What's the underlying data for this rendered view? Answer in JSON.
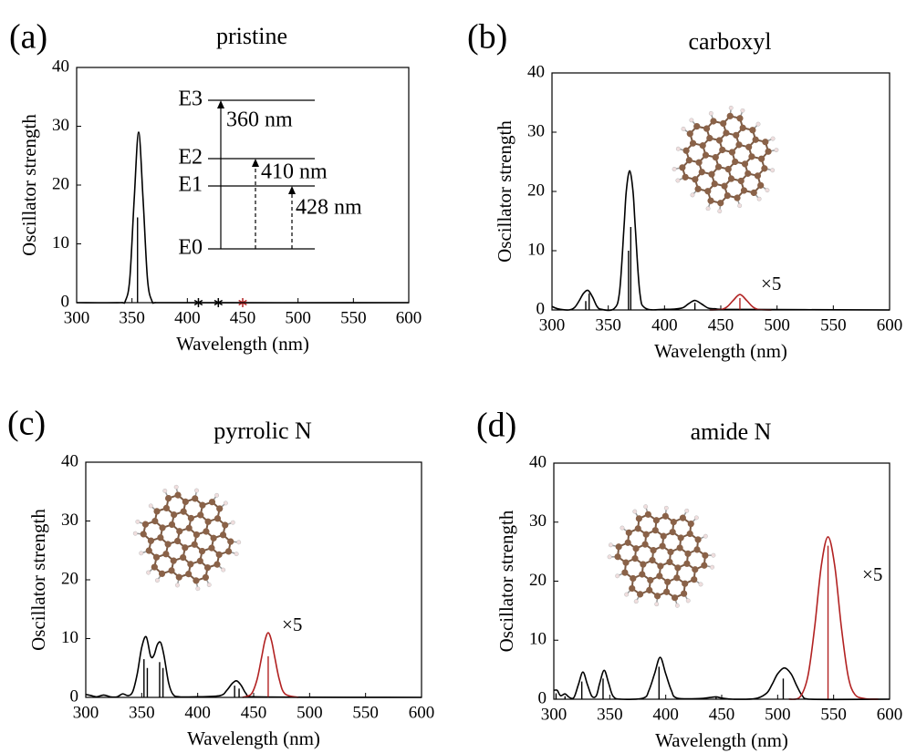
{
  "chart_data": [
    {
      "type": "line",
      "panel": "(a)",
      "title": "pristine",
      "x_label": "Wavelength (nm)",
      "y_label": "Oscillator strength",
      "xlim": [
        300,
        600
      ],
      "ylim": [
        0,
        40
      ],
      "xticks": [
        300,
        350,
        400,
        450,
        500,
        550,
        600
      ],
      "yticks": [
        0,
        10,
        20,
        30,
        40
      ],
      "series": [
        {
          "kind": "curve",
          "color": "#000000",
          "x": [
            300,
            340,
            344,
            348,
            352,
            356,
            360,
            364,
            368,
            372,
            600
          ],
          "values": [
            0,
            0,
            0.3,
            4,
            17.6,
            29,
            17.6,
            4,
            0.3,
            0,
            0
          ]
        },
        {
          "kind": "sticks",
          "color": "#000000",
          "x": [
            355
          ],
          "values": [
            14.5
          ]
        }
      ],
      "markers": {
        "x": [
          410,
          428,
          450
        ],
        "values": [
          0,
          0,
          0
        ],
        "colors": [
          "#000000",
          "#000000",
          "#b22222"
        ]
      },
      "levels": [
        "E3",
        "E2",
        "E1",
        "E0"
      ],
      "transitions": [
        "360 nm",
        "410 nm",
        "428 nm"
      ]
    },
    {
      "type": "line",
      "panel": "(b)",
      "title": "carboxyl",
      "x_label": "Wavelength (nm)",
      "y_label": "Oscillator strength",
      "xlim": [
        300,
        600
      ],
      "ylim": [
        0,
        40
      ],
      "xticks": [
        300,
        350,
        400,
        450,
        500,
        550,
        600
      ],
      "yticks": [
        0,
        10,
        20,
        30,
        40
      ],
      "series": [
        {
          "kind": "curve",
          "color": "#000000",
          "x": [
            300,
            305,
            315,
            320,
            324,
            328,
            332,
            336,
            340,
            344,
            355,
            360,
            364,
            366,
            369,
            372,
            374,
            378,
            383,
            400,
            415,
            421,
            427,
            433,
            439,
            445,
            450,
            600
          ],
          "values": [
            0.6,
            0.2,
            0,
            0.4,
            1.5,
            2.8,
            3.3,
            2.2,
            0.6,
            0.1,
            0.2,
            3,
            14,
            20,
            23.5,
            20,
            14,
            3,
            0.3,
            0.1,
            0.3,
            1,
            1.6,
            1,
            0.3,
            0.2,
            0.1,
            0
          ]
        },
        {
          "kind": "curve",
          "color": "#b22222",
          "x": [
            440,
            451,
            456,
            461,
            467,
            473,
            478,
            483,
            495
          ],
          "values": [
            0,
            0.1,
            0.6,
            1.6,
            2.6,
            1.6,
            0.6,
            0.1,
            0
          ]
        },
        {
          "kind": "sticks",
          "color": "#000000",
          "x": [
            330,
            333,
            368,
            370,
            427
          ],
          "values": [
            1.5,
            2.8,
            10,
            14,
            1.2
          ]
        },
        {
          "kind": "sticks",
          "color": "#b22222",
          "x": [
            467
          ],
          "values": [
            2
          ]
        }
      ],
      "annotations": [
        "×5"
      ]
    },
    {
      "type": "line",
      "panel": "(c)",
      "title": "pyrrolic N",
      "x_label": "Wavelength (nm)",
      "y_label": "Oscillator strength",
      "xlim": [
        300,
        600
      ],
      "ylim": [
        0,
        40
      ],
      "xticks": [
        300,
        350,
        400,
        450,
        500,
        550,
        600
      ],
      "yticks": [
        0,
        10,
        20,
        30,
        40
      ],
      "series": [
        {
          "kind": "curve",
          "color": "#000000",
          "x": [
            300,
            305,
            310,
            316,
            322,
            328,
            333,
            338,
            342,
            346,
            350,
            354,
            358,
            361,
            364,
            367,
            370,
            374,
            378,
            384,
            400,
            420,
            426,
            431,
            435,
            439,
            443,
            448,
            600
          ],
          "values": [
            0.5,
            0.3,
            0.1,
            0.4,
            0.1,
            0.1,
            0.6,
            0.3,
            1,
            4,
            8.5,
            10.3,
            7,
            7.2,
            9,
            9.3,
            7,
            2.5,
            0.5,
            0.1,
            0.1,
            0.3,
            1.2,
            2.4,
            2.8,
            2,
            0.7,
            0.1,
            0
          ]
        },
        {
          "kind": "curve",
          "color": "#b22222",
          "x": [
            440,
            448,
            453,
            457,
            460,
            463,
            466,
            469,
            473,
            478,
            490
          ],
          "values": [
            0,
            0.6,
            3,
            6.7,
            9.6,
            11,
            9.6,
            6.7,
            3,
            0.6,
            0
          ]
        },
        {
          "kind": "sticks",
          "color": "#000000",
          "x": [
            352,
            355,
            366,
            369,
            433,
            437
          ],
          "values": [
            6.5,
            5,
            6,
            5,
            2,
            1.5
          ]
        },
        {
          "kind": "sticks",
          "color": "#b22222",
          "x": [
            463
          ],
          "values": [
            7
          ]
        }
      ],
      "annotations": [
        "×5"
      ]
    },
    {
      "type": "line",
      "panel": "(d)",
      "title": "amide N",
      "x_label": "Wavelength (nm)",
      "y_label": "Oscillator strength",
      "xlim": [
        300,
        600
      ],
      "ylim": [
        0,
        40
      ],
      "xticks": [
        300,
        350,
        400,
        450,
        500,
        550,
        600
      ],
      "yticks": [
        0,
        10,
        20,
        30,
        40
      ],
      "series": [
        {
          "kind": "curve",
          "color": "#000000",
          "x": [
            300,
            303,
            306,
            310,
            314,
            318,
            322,
            326,
            330,
            334,
            338,
            341,
            345,
            349,
            353,
            360,
            380,
            385,
            390,
            395,
            400,
            405,
            410,
            430,
            440,
            445,
            450,
            460,
            480,
            490,
            495,
            500,
            506,
            512,
            517,
            522,
            528,
            600
          ],
          "values": [
            1.5,
            1.5,
            0.6,
            0.9,
            0.3,
            0.3,
            2.5,
            4.6,
            2.5,
            0.5,
            0.6,
            2.7,
            4.9,
            2.7,
            0.5,
            0,
            0.2,
            1.5,
            4.3,
            7.1,
            4.3,
            1.5,
            0.2,
            0.1,
            0.3,
            0.4,
            0.2,
            0,
            0.1,
            1,
            2.5,
            4.3,
            5.3,
            4.3,
            2.3,
            0.6,
            0,
            0
          ]
        },
        {
          "kind": "curve",
          "color": "#b22222",
          "x": [
            510,
            520,
            527,
            533,
            539,
            545,
            551,
            557,
            563,
            569,
            578,
            590
          ],
          "values": [
            0,
            0.4,
            3.9,
            12.1,
            22.6,
            27.5,
            22.6,
            12.1,
            3.9,
            0.8,
            0.1,
            0
          ]
        },
        {
          "kind": "sticks",
          "color": "#000000",
          "x": [
            302,
            310,
            325,
            344,
            394,
            445,
            505
          ],
          "values": [
            1,
            0.5,
            3,
            3.5,
            5.5,
            0.3,
            3.5
          ]
        },
        {
          "kind": "sticks",
          "color": "#b22222",
          "x": [
            545
          ],
          "values": [
            26
          ]
        }
      ],
      "annotations": [
        "×5"
      ]
    }
  ]
}
